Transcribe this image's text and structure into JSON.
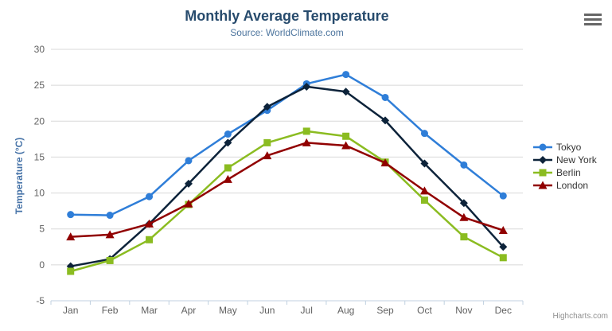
{
  "chart_data": {
    "type": "line",
    "title": "Monthly Average Temperature",
    "subtitle": "Source: WorldClimate.com",
    "categories": [
      "Jan",
      "Feb",
      "Mar",
      "Apr",
      "May",
      "Jun",
      "Jul",
      "Aug",
      "Sep",
      "Oct",
      "Nov",
      "Dec"
    ],
    "xlabel": "",
    "ylabel": "Temperature (°C)",
    "ylim": [
      -5,
      30
    ],
    "ytick_step": 5,
    "yticks": [
      -5,
      0,
      5,
      10,
      15,
      20,
      25,
      30
    ],
    "grid": true,
    "legend_position": "right",
    "series": [
      {
        "name": "Tokyo",
        "color": "#2f7ed8",
        "marker": "circle",
        "values": [
          7.0,
          6.9,
          9.5,
          14.5,
          18.2,
          21.5,
          25.2,
          26.5,
          23.3,
          18.3,
          13.9,
          9.6
        ]
      },
      {
        "name": "New York",
        "color": "#0d233a",
        "marker": "diamond",
        "values": [
          -0.2,
          0.8,
          5.7,
          11.3,
          17.0,
          22.0,
          24.8,
          24.1,
          20.1,
          14.1,
          8.6,
          2.5
        ]
      },
      {
        "name": "Berlin",
        "color": "#8bbc21",
        "marker": "square",
        "values": [
          -0.9,
          0.6,
          3.5,
          8.4,
          13.5,
          17.0,
          18.6,
          17.9,
          14.3,
          9.0,
          3.9,
          1.0
        ]
      },
      {
        "name": "London",
        "color": "#910000",
        "marker": "triangle",
        "values": [
          3.9,
          4.2,
          5.7,
          8.5,
          11.9,
          15.2,
          17.0,
          16.6,
          14.2,
          10.3,
          6.6,
          4.8
        ]
      }
    ],
    "colors": {
      "title": "#274b6d",
      "subtitle": "#4d759e",
      "axis_label": "#606060",
      "y_axis_title": "#4572a7",
      "gridline": "#d8d8d8",
      "axis_line": "#c0d0e0",
      "legend_text": "#333333"
    }
  },
  "export_menu": {
    "icon": "hamburger-menu-icon"
  },
  "credits": {
    "label": "Highcharts.com"
  }
}
